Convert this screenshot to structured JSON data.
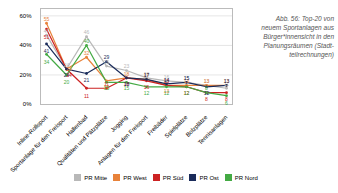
{
  "chart_data": {
    "type": "line",
    "categories": [
      "Inline-Rollsport",
      "Sportanlage für den Freisport",
      "Hallenbad",
      "Qualitäten und Pätzplätze",
      "Jogging",
      "Anlagen für den Freisport",
      "Freibäder",
      "Spielplätze",
      "Bolzplätze",
      "Tennisanlagen"
    ],
    "series": [
      {
        "name": "PR Mitte",
        "color": "#b8b8b8",
        "values": [
          47,
          24,
          46,
          26,
          23,
          18,
          16,
          15,
          13,
          11
        ]
      },
      {
        "name": "PR West",
        "color": "#e8823a",
        "values": [
          55,
          24,
          32,
          16,
          18,
          17,
          13,
          13,
          13,
          13
        ]
      },
      {
        "name": "PR Süd",
        "color": "#cc2222",
        "values": [
          51,
          24,
          11,
          11,
          18,
          16,
          13,
          12,
          8,
          8
        ]
      },
      {
        "name": "PR Ost",
        "color": "#1a2b5a",
        "values": [
          41,
          24,
          21,
          29,
          18,
          17,
          14,
          15,
          12,
          13
        ]
      },
      {
        "name": "PR Nord",
        "color": "#44aa44",
        "values": [
          34,
          20,
          40,
          15,
          15,
          12,
          12,
          12,
          8,
          6
        ]
      }
    ],
    "ylim": [
      0,
      65
    ],
    "yticks": [
      {
        "value": 0,
        "label": "0%"
      },
      {
        "value": 20,
        "label": "20%"
      },
      {
        "value": 40,
        "label": "40%"
      },
      {
        "value": 60,
        "label": "60%"
      }
    ],
    "grid": true,
    "data_labels": true,
    "marker": "circle",
    "legend": "bottom",
    "caption": "Abb. 56: Top-20 von\nneuem Sportanlagen aus\nBürger*innensicht in den\nPlanungsräumen (Stadt-\nteilrechnungen)"
  }
}
